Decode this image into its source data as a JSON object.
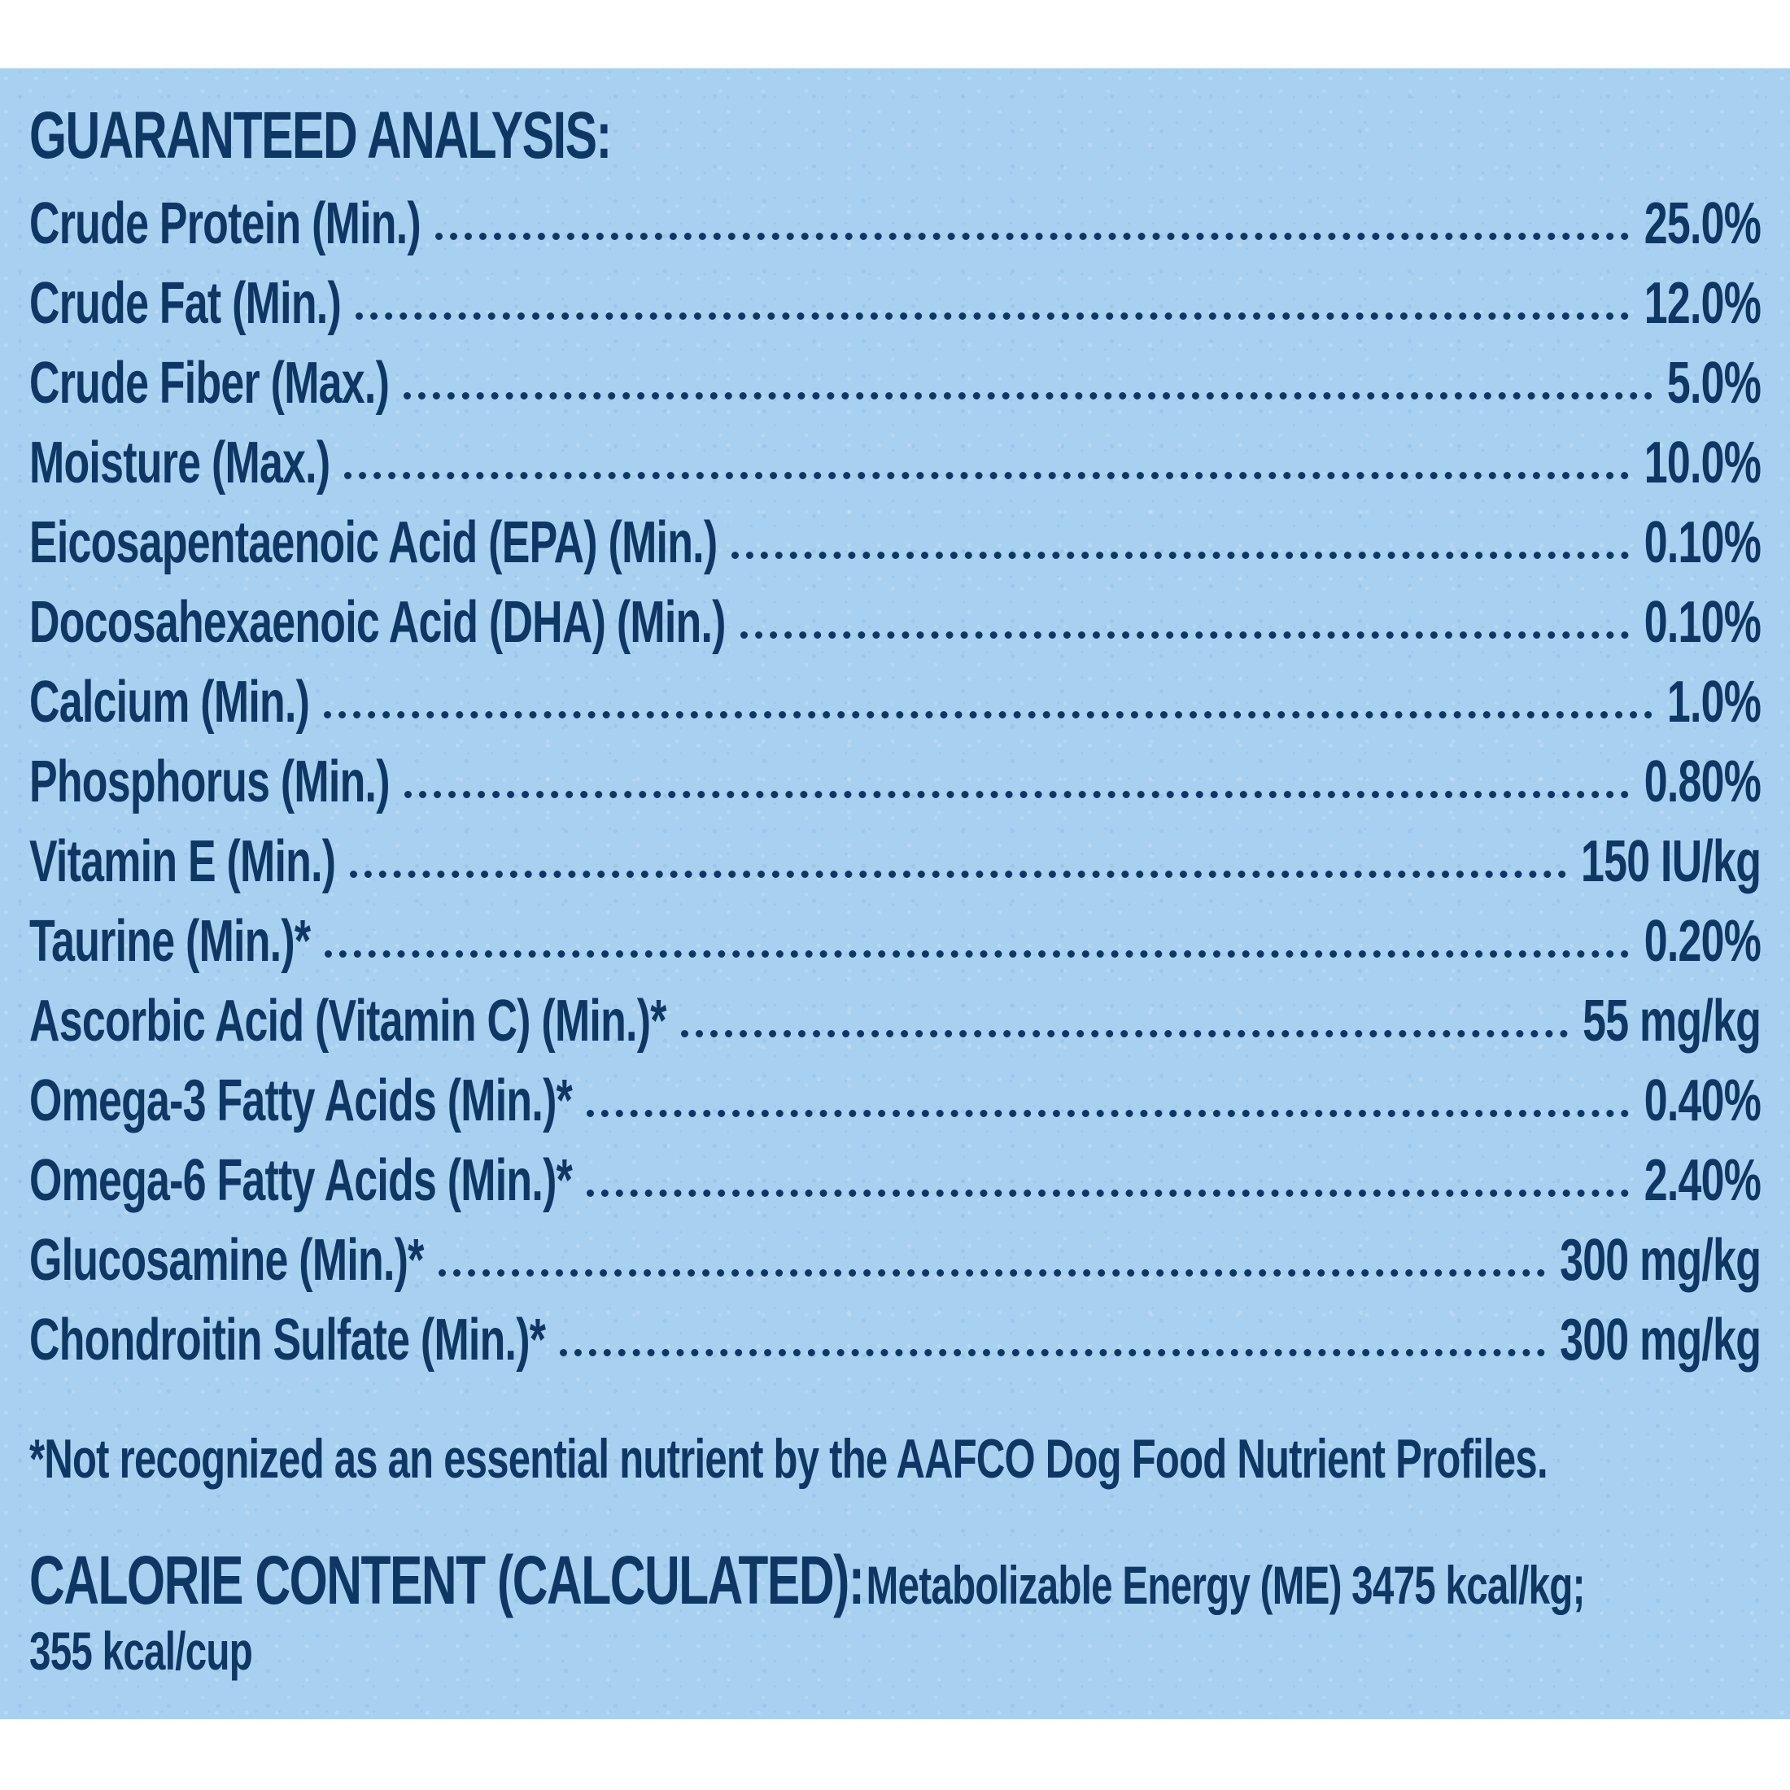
{
  "heading": "GUARANTEED ANALYSIS:",
  "colors": {
    "panel_background": "#a8d0f0",
    "text": "#0f3763"
  },
  "analysis": [
    {
      "label": "Crude Protein (Min.)",
      "value": "25.0%"
    },
    {
      "label": "Crude Fat (Min.)",
      "value": "12.0%"
    },
    {
      "label": "Crude Fiber (Max.)",
      "value": "5.0%"
    },
    {
      "label": "Moisture (Max.)",
      "value": "10.0%"
    },
    {
      "label": "Eicosapentaenoic Acid (EPA) (Min.)",
      "value": "0.10%"
    },
    {
      "label": "Docosahexaenoic Acid (DHA) (Min.)",
      "value": "0.10%"
    },
    {
      "label": "Calcium (Min.)",
      "value": "1.0%"
    },
    {
      "label": "Phosphorus (Min.)",
      "value": "0.80%"
    },
    {
      "label": "Vitamin E (Min.)",
      "value": "150 IU/kg"
    },
    {
      "label": "Taurine (Min.)*",
      "value": "0.20%"
    },
    {
      "label": "Ascorbic Acid (Vitamin C) (Min.)*",
      "value": "55 mg/kg"
    },
    {
      "label": "Omega-3 Fatty Acids (Min.)*",
      "value": "0.40%"
    },
    {
      "label": "Omega-6 Fatty Acids (Min.)*",
      "value": "2.40%"
    },
    {
      "label": "Glucosamine (Min.)*",
      "value": "300 mg/kg"
    },
    {
      "label": "Chondroitin Sulfate (Min.)*",
      "value": "300 mg/kg"
    }
  ],
  "footnote": "*Not recognized as an essential nutrient by the AAFCO Dog Food Nutrient Profiles.",
  "calorie": {
    "title": "CALORIE CONTENT (CALCULATED):",
    "text": "Metabolizable Energy (ME) 3475 kcal/kg;",
    "text_line2": "355 kcal/cup"
  }
}
